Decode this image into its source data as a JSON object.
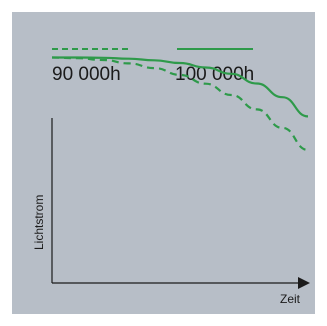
{
  "chart_data": {
    "type": "line",
    "xlabel": "Zeit",
    "ylabel": "Lichtstrom",
    "grid": false,
    "legend_placement": "top",
    "x": [
      0,
      1,
      2,
      3,
      4,
      5,
      6,
      7,
      8,
      9,
      10
    ],
    "series": [
      {
        "name": "90 000h",
        "style": "dashed",
        "color": "#2e9a4a",
        "values": [
          100,
          99.7,
          98.9,
          97.4,
          95.3,
          92.3,
          88.4,
          83.4,
          77.0,
          68.8,
          59.0
        ]
      },
      {
        "name": "100 000h",
        "style": "solid",
        "color": "#2e9a4a",
        "values": [
          100,
          100,
          99.9,
          99.5,
          98.8,
          97.6,
          95.6,
          92.8,
          88.5,
          82.4,
          73.9
        ]
      }
    ],
    "xlim": [
      0,
      10
    ],
    "ylim": [
      0,
      110
    ]
  },
  "colors": {
    "background": "#b7bec7",
    "line": "#2e9a4a",
    "axis": "#1b1b1b"
  }
}
